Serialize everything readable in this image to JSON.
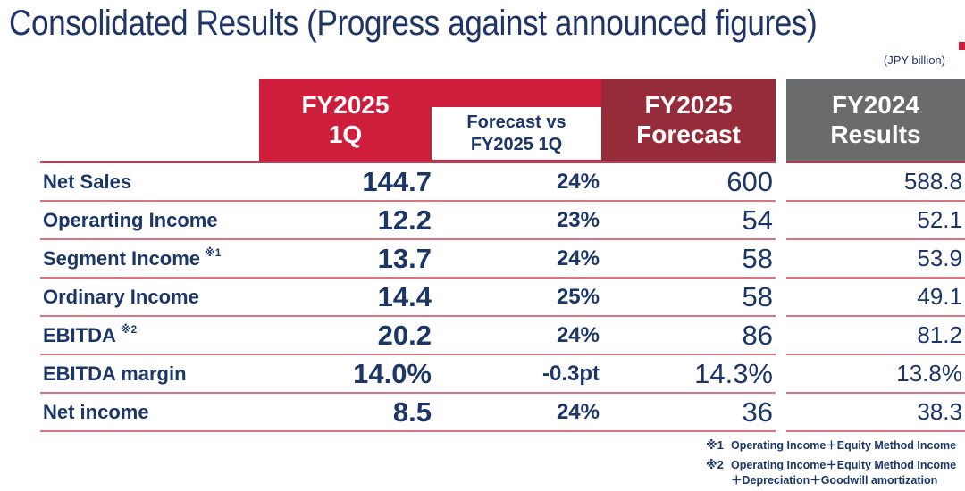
{
  "title": "Consolidated Results (Progress against announced figures)",
  "unit_note": "(JPY billion)",
  "colors": {
    "accent_red": "#ce1e3c",
    "maroon": "#962b3a",
    "gray": "#6a6b6d",
    "navy_text": "#1b3667",
    "row_line": "#d97582"
  },
  "columns": {
    "q1": "FY2025\n1Q",
    "vs": "Forecast vs\nFY2025 1Q",
    "forecast": "FY2025\nForecast",
    "fy2024": "FY2024\nResults"
  },
  "rows": [
    {
      "label": "Net Sales",
      "sup": "",
      "q1": "144.7",
      "vs": "24%",
      "forecast": "600",
      "fy2024": "588.8"
    },
    {
      "label": "Operarting Income",
      "sup": "",
      "q1": "12.2",
      "vs": "23%",
      "forecast": "54",
      "fy2024": "52.1"
    },
    {
      "label": "Segment Income",
      "sup": "※1",
      "q1": "13.7",
      "vs": "24%",
      "forecast": "58",
      "fy2024": "53.9"
    },
    {
      "label": "Ordinary Income",
      "sup": "",
      "q1": "14.4",
      "vs": "25%",
      "forecast": "58",
      "fy2024": "49.1"
    },
    {
      "label": "EBITDA",
      "sup": "※2",
      "q1": "20.2",
      "vs": "24%",
      "forecast": "86",
      "fy2024": "81.2"
    },
    {
      "label": "EBITDA margin",
      "sup": "",
      "q1": "14.0%",
      "vs": "-0.3pt",
      "forecast": "14.3%",
      "fy2024": "13.8%"
    },
    {
      "label": "Net income",
      "sup": "",
      "q1": "8.5",
      "vs": "24%",
      "forecast": "36",
      "fy2024": "38.3"
    }
  ],
  "footnotes": [
    {
      "marker": "※1",
      "text": "Operating Income＋Equity Method Income"
    },
    {
      "marker": "※2",
      "text": "Operating Income＋Equity Method Income\n＋Depreciation＋Goodwill amortization"
    }
  ]
}
